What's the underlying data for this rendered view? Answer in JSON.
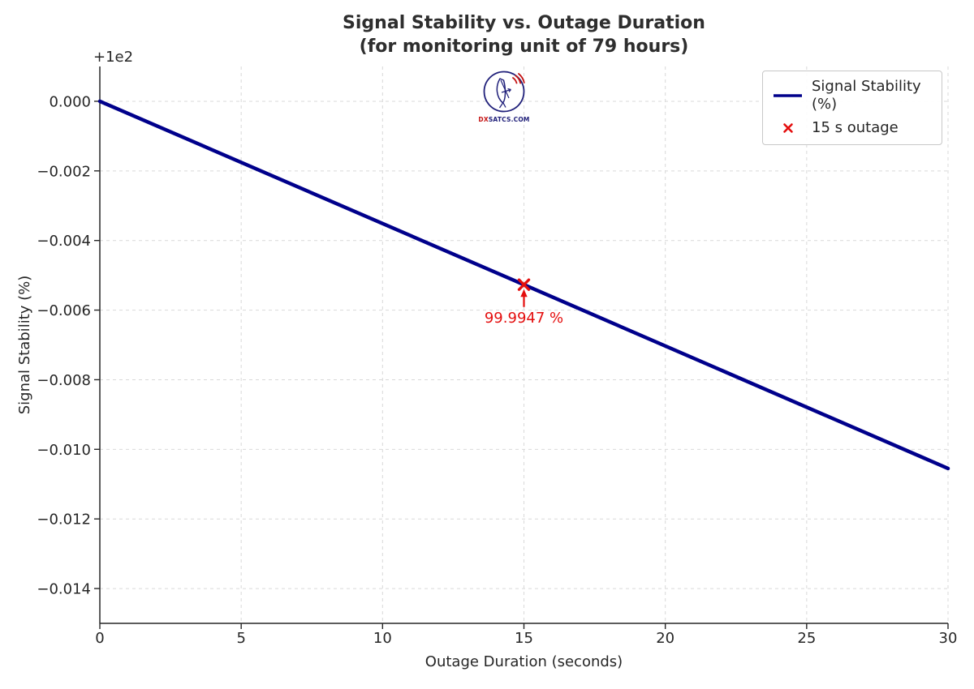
{
  "header": {
    "title": "Signal Stability vs. Outage Duration",
    "subtitle": "(for monitoring unit of 79 hours)"
  },
  "logo": {
    "brand_prefix": "DX",
    "brand_suffix": "SATCS.COM"
  },
  "axes": {
    "xlabel": "Outage Duration (seconds)",
    "ylabel": "Signal Stability (%)",
    "offset_text": "+1e2"
  },
  "legend": {
    "items": [
      {
        "label": "Signal Stability (%)",
        "marker": "line",
        "color": "#00008b"
      },
      {
        "label": "15 s outage",
        "marker": "x",
        "color": "#e40e0e"
      }
    ]
  },
  "annotation": {
    "label": "99.9947 %"
  },
  "colors": {
    "line": "#00008b",
    "accent_red": "#e40e0e",
    "grid": "#d9d9d9",
    "axis": "#262626",
    "title": "#2e2e2e"
  },
  "chart_data": {
    "type": "line",
    "title": "Signal Stability vs. Outage Duration",
    "subtitle": "(for monitoring unit of 79 hours)",
    "xlabel": "Outage Duration (seconds)",
    "ylabel": "Signal Stability (%)",
    "x_axis_range": [
      0,
      30
    ],
    "y_axis_range": [
      99.985,
      100.001
    ],
    "y_offset_base": 100,
    "offset_label": "+1e2",
    "x_ticks": [
      0,
      5,
      10,
      15,
      20,
      25,
      30
    ],
    "y_tick_offsets": [
      0,
      -0.002,
      -0.004,
      -0.006,
      -0.008,
      -0.01,
      -0.012,
      -0.014
    ],
    "grid": true,
    "legend_position": "upper right",
    "series": [
      {
        "name": "Signal Stability (%)",
        "color": "#00008b",
        "x": [
          0,
          15,
          30
        ],
        "y": [
          100.0,
          99.99473,
          99.98945
        ]
      }
    ],
    "markers": [
      {
        "name": "15 s outage",
        "color": "#e40e0e",
        "x": 15,
        "y": 99.99473
      }
    ],
    "annotations": [
      {
        "text": "99.9947 %",
        "x": 15,
        "y": 99.99473,
        "color": "#e40e0e"
      }
    ]
  }
}
